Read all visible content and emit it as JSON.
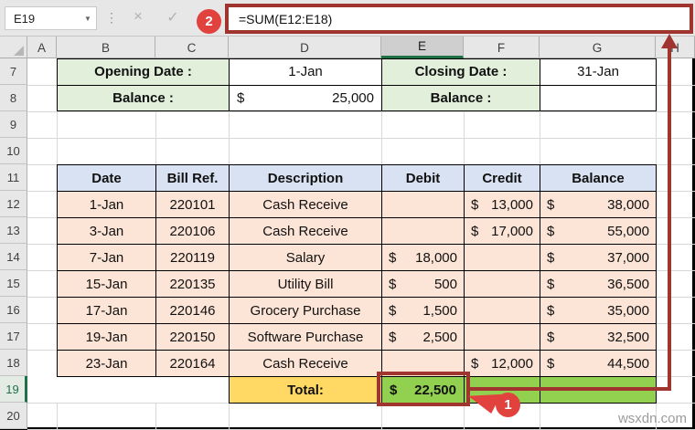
{
  "window": {
    "watermark": "wsxdn.com"
  },
  "formula_bar": {
    "name_box_value": "E19",
    "dropdown_icon": "▼",
    "dots_icon": "⋮",
    "cancel_icon": "×",
    "enter_icon": "✓",
    "formula": "=SUM(E12:E18)"
  },
  "annotations": {
    "step_1_badge": "1",
    "step_2_badge": "2"
  },
  "grid": {
    "column_headers": [
      "A",
      "B",
      "C",
      "D",
      "E",
      "F",
      "G",
      "H"
    ],
    "row_headers": [
      "7",
      "8",
      "9",
      "10",
      "11",
      "12",
      "13",
      "14",
      "15",
      "16",
      "17",
      "18",
      "19",
      "20"
    ],
    "selected_cell": "E19",
    "selected_column": "E",
    "selected_row": "19"
  },
  "info_panel": {
    "opening_date_label": "Opening Date :",
    "opening_date": "1-Jan",
    "closing_date_label": "Closing Date :",
    "closing_date": "31-Jan",
    "opening_balance_label": "Balance :",
    "currency": "$",
    "opening_balance": "25,000",
    "closing_balance_label": "Balance :",
    "closing_balance": ""
  },
  "ledger": {
    "headers": [
      "Date",
      "Bill Ref.",
      "Description",
      "Debit",
      "Credit",
      "Balance"
    ],
    "rows": [
      {
        "date": "1-Jan",
        "bill_ref": "220101",
        "description": "Cash Receive",
        "debit": "",
        "credit": "13,000",
        "balance": "38,000"
      },
      {
        "date": "3-Jan",
        "bill_ref": "220106",
        "description": "Cash Receive",
        "debit": "",
        "credit": "17,000",
        "balance": "55,000"
      },
      {
        "date": "7-Jan",
        "bill_ref": "220119",
        "description": "Salary",
        "debit": "18,000",
        "credit": "",
        "balance": "37,000"
      },
      {
        "date": "15-Jan",
        "bill_ref": "220135",
        "description": "Utility Bill",
        "debit": "500",
        "credit": "",
        "balance": "36,500"
      },
      {
        "date": "17-Jan",
        "bill_ref": "220146",
        "description": "Grocery Purchase",
        "debit": "1,500",
        "credit": "",
        "balance": "35,000"
      },
      {
        "date": "19-Jan",
        "bill_ref": "220150",
        "description": "Software Purchase",
        "debit": "2,500",
        "credit": "",
        "balance": "32,500"
      },
      {
        "date": "23-Jan",
        "bill_ref": "220164",
        "description": "Cash Receive",
        "debit": "",
        "credit": "12,000",
        "balance": "44,500"
      }
    ],
    "currency": "$",
    "total_label": "Total:",
    "total_debit": "22,500"
  },
  "colors": {
    "annotation_red": "#a0342f",
    "badge_red": "#e2423d",
    "header_blue": "#d9e2f3",
    "row_peach": "#fce4d6",
    "green_light": "#e2efda",
    "total_yellow": "#ffd964",
    "total_green": "#92d050",
    "excel_green": "#1f7145"
  }
}
